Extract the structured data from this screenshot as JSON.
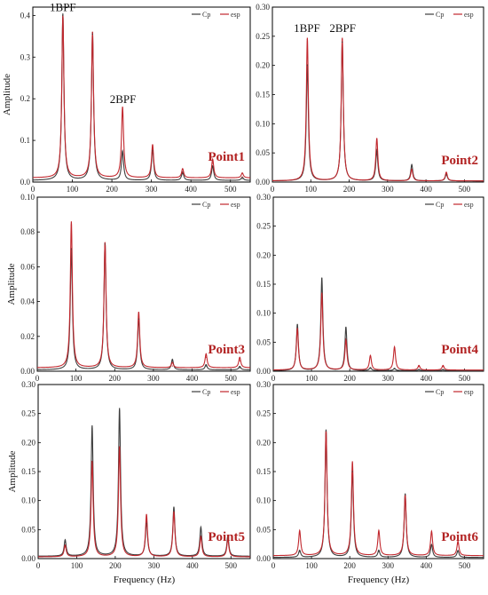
{
  "colors": {
    "cp": "#3d3d3d",
    "esp": "#c1272d",
    "point_label": "#b22222"
  },
  "chart_data": [
    {
      "type": "line",
      "title": "Point1",
      "xlabel": "",
      "ylabel": "Amplitude",
      "xlim": [
        0,
        550
      ],
      "ylim": [
        0,
        0.42
      ],
      "xticks": [
        0,
        100,
        200,
        300,
        400,
        500
      ],
      "yticks": [
        0.0,
        0.1,
        0.2,
        0.3,
        0.4
      ],
      "ytick_labels": [
        "0.0",
        "0.1",
        "0.2",
        "0.3",
        "0.4"
      ],
      "legend": [
        "Cp",
        "esp"
      ],
      "legend_position": "top-right",
      "annotations": [
        {
          "text": "1BPF",
          "x": 76,
          "y": 0.41
        },
        {
          "text": "2BPF",
          "x": 228,
          "y": 0.19
        }
      ],
      "peaks": {
        "x": [
          76,
          151,
          227,
          303,
          379,
          455,
          530
        ],
        "cp": [
          0.4,
          0.355,
          0.07,
          0.075,
          0.02,
          0.035,
          0.008
        ],
        "esp": [
          0.39,
          0.35,
          0.17,
          0.08,
          0.022,
          0.045,
          0.012
        ]
      },
      "baseline": {
        "cp": 0.004,
        "esp": 0.01
      },
      "series": [
        {
          "name": "Cp"
        },
        {
          "name": "esp"
        }
      ]
    },
    {
      "type": "line",
      "title": "Point2",
      "xlabel": "",
      "ylabel": "",
      "xlim": [
        0,
        550
      ],
      "ylim": [
        0,
        0.3
      ],
      "xticks": [
        0,
        100,
        200,
        300,
        400,
        500
      ],
      "yticks": [
        0.0,
        0.05,
        0.1,
        0.15,
        0.2,
        0.25,
        0.3
      ],
      "ytick_labels": [
        "0.00",
        "0.05",
        "0.10",
        "0.15",
        "0.20",
        "0.25",
        "0.30"
      ],
      "legend": [
        "Cp",
        "esp"
      ],
      "legend_position": "top-right",
      "annotations": [
        {
          "text": "1BPF",
          "x": 90,
          "y": 0.257
        },
        {
          "text": "2BPF",
          "x": 183,
          "y": 0.257
        }
      ],
      "peaks": {
        "x": [
          91,
          182,
          272,
          363,
          453
        ],
        "cp": [
          0.2,
          0.24,
          0.052,
          0.028,
          0.012
        ],
        "esp": [
          0.245,
          0.245,
          0.073,
          0.02,
          0.015
        ]
      },
      "baseline": {
        "cp": 0.002,
        "esp": 0.002
      },
      "series": [
        {
          "name": "Cp"
        },
        {
          "name": "esp"
        }
      ]
    },
    {
      "type": "line",
      "title": "Point3",
      "xlabel": "",
      "ylabel": "Amplitude",
      "xlim": [
        0,
        550
      ],
      "ylim": [
        0,
        0.1
      ],
      "xticks": [
        0,
        100,
        200,
        300,
        400,
        500
      ],
      "yticks": [
        0.0,
        0.02,
        0.04,
        0.06,
        0.08,
        0.1
      ],
      "ytick_labels": [
        "0.00",
        "0.02",
        "0.04",
        "0.06",
        "0.08",
        "0.10"
      ],
      "legend": [
        "Cp",
        "esp"
      ],
      "legend_position": "top-right",
      "annotations": [],
      "peaks": {
        "x": [
          88,
          175,
          262,
          349,
          436,
          523
        ],
        "cp": [
          0.07,
          0.073,
          0.03,
          0.006,
          0.003,
          0.002
        ],
        "esp": [
          0.084,
          0.072,
          0.032,
          0.003,
          0.008,
          0.006
        ]
      },
      "baseline": {
        "cp": 0.0008,
        "esp": 0.002
      },
      "series": [
        {
          "name": "Cp"
        },
        {
          "name": "esp"
        }
      ]
    },
    {
      "type": "line",
      "title": "Point4",
      "xlabel": "",
      "ylabel": "",
      "xlim": [
        0,
        550
      ],
      "ylim": [
        0,
        0.3
      ],
      "xticks": [
        0,
        100,
        200,
        300,
        400,
        500
      ],
      "yticks": [
        0.0,
        0.05,
        0.1,
        0.15,
        0.2,
        0.25,
        0.3
      ],
      "ytick_labels": [
        "0.00",
        "0.05",
        "0.10",
        "0.15",
        "0.20",
        "0.25",
        "0.30"
      ],
      "legend": [
        "Cp",
        "esp"
      ],
      "legend_position": "top-right",
      "annotations": [],
      "peaks": {
        "x": [
          63,
          127,
          190,
          254,
          317,
          381,
          444
        ],
        "cp": [
          0.08,
          0.16,
          0.075,
          0.005,
          0.004,
          0.002,
          0.002
        ],
        "esp": [
          0.072,
          0.133,
          0.052,
          0.025,
          0.04,
          0.008,
          0.008
        ]
      },
      "baseline": {
        "cp": 0.001,
        "esp": 0.002
      },
      "series": [
        {
          "name": "Cp"
        },
        {
          "name": "esp"
        }
      ]
    },
    {
      "type": "line",
      "title": "Point5",
      "xlabel": "Frequency (Hz)",
      "ylabel": "Amplitude",
      "xlim": [
        0,
        550
      ],
      "ylim": [
        0,
        0.3
      ],
      "xticks": [
        0,
        100,
        200,
        300,
        400,
        500
      ],
      "yticks": [
        0.0,
        0.05,
        0.1,
        0.15,
        0.2,
        0.25,
        0.3
      ],
      "ytick_labels": [
        "0.00",
        "0.05",
        "0.10",
        "0.15",
        "0.20",
        "0.25",
        "0.30"
      ],
      "legend": [
        "Cp",
        "esp"
      ],
      "legend_position": "top-right",
      "annotations": [],
      "peaks": {
        "x": [
          70,
          140,
          211,
          281,
          352,
          422,
          492
        ],
        "cp": [
          0.028,
          0.225,
          0.255,
          0.06,
          0.085,
          0.05,
          0.035
        ],
        "esp": [
          0.02,
          0.165,
          0.19,
          0.073,
          0.078,
          0.035,
          0.03
        ]
      },
      "baseline": {
        "cp": 0.004,
        "esp": 0.003
      },
      "series": [
        {
          "name": "Cp"
        },
        {
          "name": "esp"
        }
      ]
    },
    {
      "type": "line",
      "title": "Point6",
      "xlabel": "Frequency (Hz)",
      "ylabel": "",
      "xlim": [
        0,
        550
      ],
      "ylim": [
        0,
        0.3
      ],
      "xticks": [
        0,
        100,
        200,
        300,
        400,
        500
      ],
      "yticks": [
        0.0,
        0.05,
        0.1,
        0.15,
        0.2,
        0.25,
        0.3
      ],
      "ytick_labels": [
        "0.00",
        "0.05",
        "0.10",
        "0.15",
        "0.20",
        "0.25",
        "0.30"
      ],
      "legend": [
        "Cp",
        "esp"
      ],
      "legend_position": "top-right",
      "annotations": [],
      "peaks": {
        "x": [
          69,
          138,
          207,
          276,
          345,
          414,
          483
        ],
        "cp": [
          0.012,
          0.22,
          0.15,
          0.012,
          0.11,
          0.022,
          0.012
        ],
        "esp": [
          0.043,
          0.215,
          0.162,
          0.043,
          0.105,
          0.042,
          0.025
        ]
      },
      "baseline": {
        "cp": 0.002,
        "esp": 0.005
      },
      "series": [
        {
          "name": "Cp"
        },
        {
          "name": "esp"
        }
      ]
    }
  ]
}
